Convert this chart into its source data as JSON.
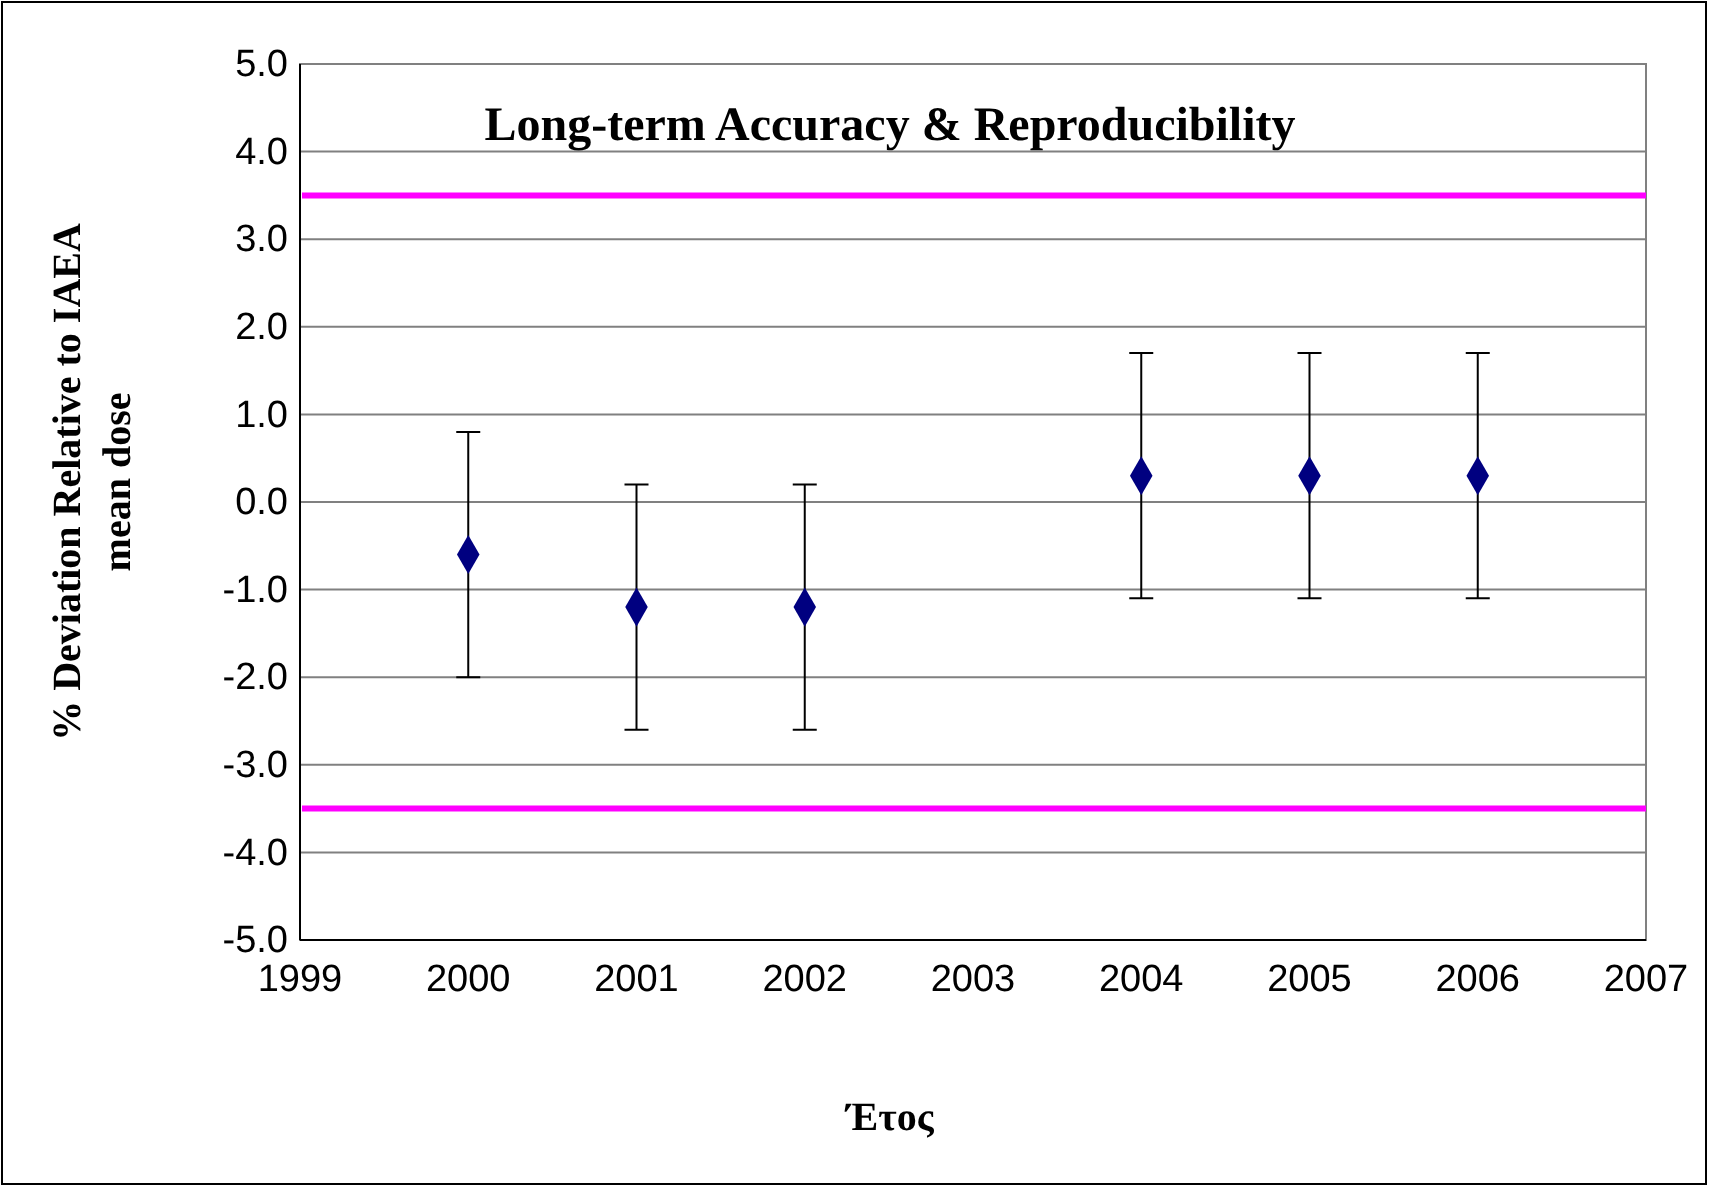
{
  "chart_data": {
    "type": "scatter",
    "title": "Long-term Accuracy & Reproducibility",
    "xlabel": "Έτος",
    "ylabel": "% Deviation Relative to IAEA mean dose",
    "x": [
      2000,
      2001,
      2002,
      2004,
      2005,
      2006
    ],
    "series": [
      {
        "color": "#000080",
        "values": [
          -0.6,
          -1.2,
          -1.2,
          0.3,
          0.3,
          0.3
        ],
        "errors": [
          1.4,
          1.4,
          1.4,
          1.4,
          1.4,
          1.4
        ]
      }
    ],
    "xlim": [
      1999,
      2007
    ],
    "xticks": [
      1999,
      2000,
      2001,
      2002,
      2003,
      2004,
      2005,
      2006,
      2007
    ],
    "ylim": [
      -5,
      5
    ],
    "yticks": [
      {
        "value": -5,
        "label": "-5.0"
      },
      {
        "value": -4,
        "label": "-4.0"
      },
      {
        "value": -3,
        "label": "-3.0"
      },
      {
        "value": -2,
        "label": "-2.0"
      },
      {
        "value": -1,
        "label": "-1.0"
      },
      {
        "value": 0,
        "label": "0.0"
      },
      {
        "value": 1,
        "label": "1.0"
      },
      {
        "value": 2,
        "label": "2.0"
      },
      {
        "value": 3,
        "label": "3.0"
      },
      {
        "value": 4,
        "label": "4.0"
      },
      {
        "value": 5,
        "label": "5.0"
      }
    ],
    "ref_lines": [
      {
        "axis": "y",
        "value": 3.5,
        "color": "#ff00ff"
      },
      {
        "axis": "y",
        "value": -3.5,
        "color": "#ff00ff"
      }
    ],
    "grid": "y",
    "legend": false,
    "marker": "diamond"
  }
}
